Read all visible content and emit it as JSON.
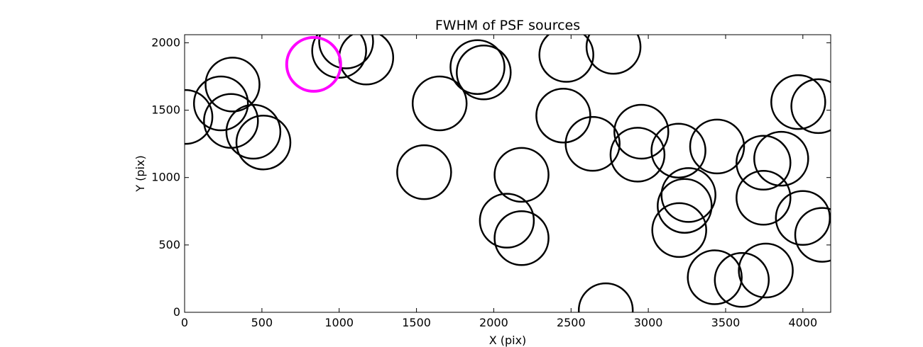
{
  "chart_data": {
    "type": "scatter",
    "title": "FWHM of PSF sources",
    "xlabel": "X (pix)",
    "ylabel": "Y (pix)",
    "xlim": [
      0,
      4180
    ],
    "ylim": [
      0,
      2060
    ],
    "xticks": [
      0,
      500,
      1000,
      1500,
      2000,
      2500,
      3000,
      3500,
      4000
    ],
    "yticks": [
      0,
      500,
      1000,
      1500,
      2000
    ],
    "grid": false,
    "legend": "none",
    "marker": "circle (size = FWHM, same for all sources)",
    "colors": {
      "source": "#000000",
      "highlight": "#ff00ff",
      "background": "#ffffff"
    },
    "series": [
      {
        "values": [
          {
            "x": 5,
            "y": 1450
          },
          {
            "x": 235,
            "y": 1550
          },
          {
            "x": 310,
            "y": 1690
          },
          {
            "x": 300,
            "y": 1420
          },
          {
            "x": 445,
            "y": 1340
          },
          {
            "x": 510,
            "y": 1260
          },
          {
            "x": 1000,
            "y": 1940
          },
          {
            "x": 1045,
            "y": 2010
          },
          {
            "x": 1175,
            "y": 1890
          },
          {
            "x": 1550,
            "y": 1040
          },
          {
            "x": 1650,
            "y": 1550
          },
          {
            "x": 1895,
            "y": 1820
          },
          {
            "x": 1935,
            "y": 1780
          },
          {
            "x": 2085,
            "y": 680
          },
          {
            "x": 2180,
            "y": 1020
          },
          {
            "x": 2180,
            "y": 550
          },
          {
            "x": 2450,
            "y": 1460
          },
          {
            "x": 2470,
            "y": 1910
          },
          {
            "x": 2640,
            "y": 1250
          },
          {
            "x": 2775,
            "y": 1970
          },
          {
            "x": 2725,
            "y": 15
          },
          {
            "x": 2930,
            "y": 1170
          },
          {
            "x": 2955,
            "y": 1340
          },
          {
            "x": 3195,
            "y": 1200
          },
          {
            "x": 3200,
            "y": 610
          },
          {
            "x": 3235,
            "y": 790
          },
          {
            "x": 3260,
            "y": 870
          },
          {
            "x": 3430,
            "y": 260
          },
          {
            "x": 3445,
            "y": 1230
          },
          {
            "x": 3605,
            "y": 240
          },
          {
            "x": 3745,
            "y": 1110
          },
          {
            "x": 3745,
            "y": 850
          },
          {
            "x": 3760,
            "y": 310
          },
          {
            "x": 3860,
            "y": 1140
          },
          {
            "x": 3970,
            "y": 1560
          },
          {
            "x": 4000,
            "y": 700
          },
          {
            "x": 4100,
            "y": 1530
          },
          {
            "x": 4125,
            "y": 575
          }
        ]
      },
      {
        "values": [
          {
            "x": 835,
            "y": 1840
          }
        ]
      }
    ]
  }
}
